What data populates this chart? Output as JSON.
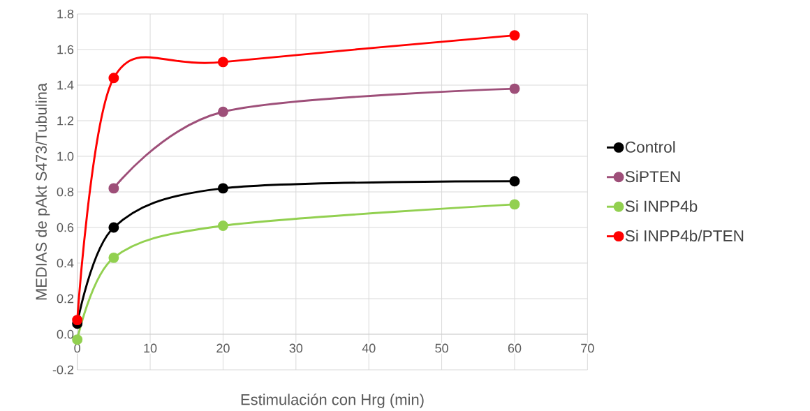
{
  "chart_data": {
    "type": "line",
    "xlabel": "Estimulación con Hrg (min)",
    "ylabel": "MEDIAS de pAkt S473/Tubulina",
    "x": [
      0,
      5,
      20,
      60
    ],
    "series": [
      {
        "name": "Control",
        "color": "#000000",
        "values": [
          0.06,
          0.6,
          0.82,
          0.86
        ]
      },
      {
        "name": "SiPTEN",
        "color": "#9e4f79",
        "values": [
          null,
          0.82,
          1.25,
          1.38
        ]
      },
      {
        "name": "Si INPP4b",
        "color": "#92d050",
        "values": [
          -0.03,
          0.43,
          0.61,
          0.73
        ]
      },
      {
        "name": "Si INPP4b/PTEN",
        "color": "#ff0000",
        "values": [
          0.08,
          1.44,
          1.53,
          1.68
        ]
      }
    ],
    "xlim": [
      0,
      70
    ],
    "xticks": [
      0,
      10,
      20,
      30,
      40,
      50,
      60,
      70
    ],
    "ylim": [
      -0.2,
      1.8
    ],
    "yticks": [
      {
        "value": -0.2,
        "label": "-0.2"
      },
      {
        "value": 0,
        "label": "0.0"
      },
      {
        "value": 0.2,
        "label": "0.2"
      },
      {
        "value": 0.4,
        "label": "0.4"
      },
      {
        "value": 0.6,
        "label": "0.6"
      },
      {
        "value": 0.8,
        "label": "0.8"
      },
      {
        "value": 1.0,
        "label": "1.0"
      },
      {
        "value": 1.2,
        "label": "1.2"
      },
      {
        "value": 1.4,
        "label": "1.4"
      },
      {
        "value": 1.6,
        "label": "1.6"
      },
      {
        "value": 1.8,
        "label": "1.8"
      }
    ],
    "grid": true,
    "legend": "right",
    "marker": "circle",
    "line_style": "solid"
  }
}
